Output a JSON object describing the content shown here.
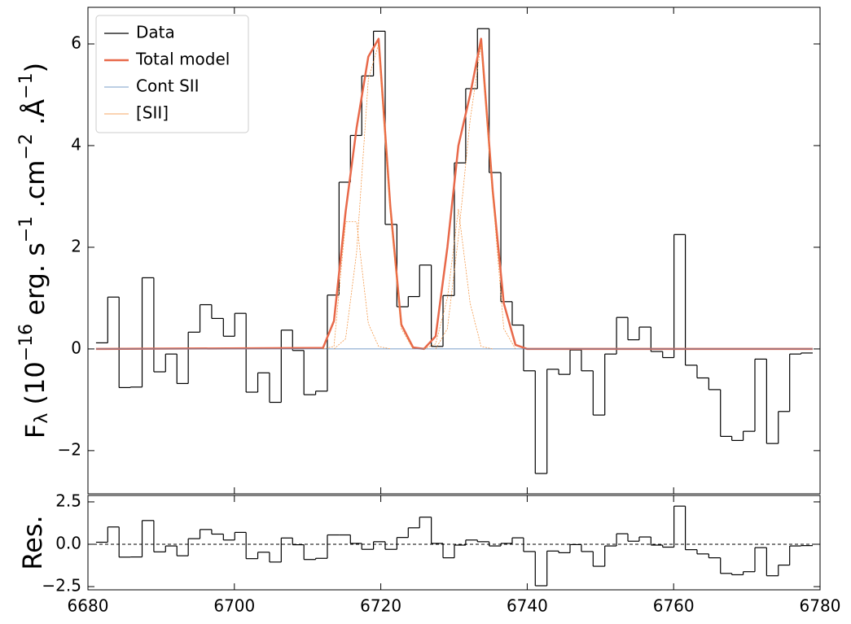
{
  "chart_data": [
    {
      "type": "line",
      "ylabel_parts": [
        {
          "text": "F"
        },
        {
          "text": "λ",
          "shift": "sub"
        },
        {
          "text": "  (10"
        },
        {
          "text": "−16",
          "shift": "sup"
        },
        {
          "text": " erg. s"
        },
        {
          "text": "−1",
          "shift": "sup"
        },
        {
          "text": " .cm"
        },
        {
          "text": "−2",
          "shift": "sup"
        },
        {
          "text": " .Å"
        },
        {
          "text": "−1",
          "shift": "sup"
        },
        {
          "text": ")"
        }
      ],
      "xlim": [
        6680,
        6780
      ],
      "xticks": [
        6680,
        6700,
        6720,
        6740,
        6760,
        6780
      ],
      "show_xtick_labels": false,
      "ylim": [
        -2.85,
        6.72
      ],
      "yticks": [
        {
          "value": -2,
          "label": "−2"
        },
        0,
        2,
        4,
        6
      ],
      "legend": "upper left",
      "series": [
        {
          "name": "Data",
          "color": "#000000",
          "linewidth": 1.2,
          "drawstyle": "steps-mid",
          "x": [
            6681.9,
            6683.5,
            6685.0,
            6686.6,
            6688.2,
            6689.8,
            6691.4,
            6692.9,
            6694.5,
            6696.1,
            6697.7,
            6699.3,
            6700.8,
            6702.4,
            6704.0,
            6705.6,
            6707.2,
            6708.7,
            6710.3,
            6711.9,
            6713.5,
            6715.1,
            6716.6,
            6718.2,
            6719.8,
            6721.4,
            6723.0,
            6724.5,
            6726.1,
            6727.7,
            6729.3,
            6730.8,
            6732.4,
            6734.0,
            6735.6,
            6737.2,
            6738.7,
            6740.3,
            6741.9,
            6743.5,
            6745.1,
            6746.6,
            6748.2,
            6749.8,
            6751.4,
            6753.0,
            6754.5,
            6756.1,
            6757.7,
            6759.3,
            6760.8,
            6762.4,
            6764.0,
            6765.6,
            6767.2,
            6768.7,
            6770.3,
            6771.9,
            6773.5,
            6775.1,
            6776.6,
            6778.2
          ],
          "values": [
            0.12,
            1.02,
            -0.76,
            -0.75,
            1.4,
            -0.45,
            -0.1,
            -0.68,
            0.33,
            0.87,
            0.6,
            0.25,
            0.7,
            -0.85,
            -0.47,
            -1.05,
            0.37,
            -0.03,
            -0.9,
            -0.83,
            1.06,
            3.28,
            4.2,
            5.37,
            6.25,
            2.45,
            0.83,
            1.03,
            1.65,
            0.05,
            1.05,
            3.66,
            5.12,
            6.3,
            3.47,
            0.93,
            0.47,
            -0.43,
            -2.45,
            -0.4,
            -0.5,
            -0.02,
            -0.43,
            -1.3,
            -0.1,
            0.62,
            0.18,
            0.43,
            -0.05,
            -0.17,
            2.25,
            -0.32,
            -0.57,
            -0.8,
            -1.72,
            -1.8,
            -1.62,
            -0.2,
            -1.86,
            -1.23,
            -0.1,
            -0.08
          ]
        },
        {
          "name": "Total model",
          "color": "#e8694a",
          "linewidth": 2.5,
          "x": [
            6681.1,
            6712.1,
            6713.6,
            6715.2,
            6716.7,
            6718.3,
            6719.7,
            6721.3,
            6722.8,
            6724.4,
            6725.9,
            6727.5,
            6729.1,
            6730.6,
            6732.2,
            6733.7,
            6735.3,
            6736.8,
            6738.4,
            6740.0,
            6779.0
          ],
          "values": [
            0,
            0.02,
            0.55,
            2.7,
            4.35,
            5.75,
            6.1,
            2.8,
            0.48,
            0.03,
            0,
            0.25,
            2.0,
            4.0,
            5.0,
            6.1,
            3.1,
            0.9,
            0.08,
            0,
            0
          ]
        },
        {
          "name": "Cont SII",
          "color": "#4c7fb8",
          "linewidth": 0.8,
          "x": [
            6681.1,
            6779.0
          ],
          "values": [
            0,
            0
          ]
        },
        {
          "name": "[SII]",
          "color": "#f28a30",
          "linewidth": 0.7,
          "linestyle": "dotted",
          "x": [
            6712.1,
            6713.6,
            6715.2,
            6716.7,
            6718.3,
            6719.7,
            6721.3,
            null,
            6713.6,
            6715.2,
            6716.7,
            6718.3,
            6719.7,
            6721.3,
            6722.8,
            6724.4,
            null,
            6725.9,
            6727.5,
            6729.1,
            6730.6,
            6732.2,
            6733.7,
            6735.3,
            null,
            6727.5,
            6729.1,
            6730.6,
            6732.2,
            6733.7,
            6735.3,
            6736.8,
            6738.4
          ],
          "values": [
            0,
            0.05,
            2.5,
            2.5,
            0.5,
            0.05,
            0,
            null,
            0,
            0.2,
            1.9,
            5.3,
            6.0,
            2.7,
            0.4,
            0,
            null,
            0,
            0.1,
            1.0,
            2.75,
            0.9,
            0.05,
            0,
            null,
            0,
            0.4,
            2.2,
            4.5,
            6.0,
            3.0,
            0.4,
            0
          ]
        }
      ]
    },
    {
      "type": "line",
      "ylabel_parts": [
        {
          "text": "Res."
        }
      ],
      "xlim": [
        6680,
        6780
      ],
      "xticks": [
        6680,
        6700,
        6720,
        6740,
        6760,
        6780
      ],
      "show_xtick_labels": true,
      "ylim": [
        -2.69,
        2.88
      ],
      "yticks": [
        {
          "value": -2.5,
          "label": "−2.5"
        },
        {
          "value": 0,
          "label": "0.0"
        },
        2.5
      ],
      "reference_line": 0,
      "series": [
        {
          "color": "#000000",
          "linewidth": 1.2,
          "drawstyle": "steps-mid",
          "x": [
            6681.9,
            6683.5,
            6685.0,
            6686.6,
            6688.2,
            6689.8,
            6691.4,
            6692.9,
            6694.5,
            6696.1,
            6697.7,
            6699.3,
            6700.8,
            6702.4,
            6704.0,
            6705.6,
            6707.2,
            6708.7,
            6710.3,
            6711.9,
            6713.5,
            6715.1,
            6716.6,
            6718.2,
            6719.8,
            6721.4,
            6723.0,
            6724.5,
            6726.1,
            6727.7,
            6729.3,
            6730.8,
            6732.4,
            6734.0,
            6735.6,
            6737.2,
            6738.7,
            6740.3,
            6741.9,
            6743.5,
            6745.1,
            6746.6,
            6748.2,
            6749.8,
            6751.4,
            6753.0,
            6754.5,
            6756.1,
            6757.7,
            6759.3,
            6760.8,
            6762.4,
            6764.0,
            6765.6,
            6767.2,
            6768.7,
            6770.3,
            6771.9,
            6773.5,
            6775.1,
            6776.6,
            6778.2
          ],
          "values": [
            0.12,
            1.02,
            -0.76,
            -0.75,
            1.4,
            -0.45,
            -0.1,
            -0.68,
            0.33,
            0.87,
            0.6,
            0.25,
            0.7,
            -0.85,
            -0.47,
            -1.05,
            0.37,
            -0.03,
            -0.9,
            -0.83,
            0.55,
            0.55,
            0.05,
            -0.3,
            0.15,
            -0.3,
            0.4,
            0.97,
            1.6,
            0.05,
            -0.8,
            -0.05,
            0.25,
            0.15,
            -0.1,
            0.05,
            0.38,
            -0.43,
            -2.45,
            -0.4,
            -0.5,
            -0.02,
            -0.43,
            -1.3,
            -0.1,
            0.62,
            0.18,
            0.43,
            -0.05,
            -0.17,
            2.25,
            -0.32,
            -0.57,
            -0.8,
            -1.72,
            -1.8,
            -1.62,
            -0.2,
            -1.86,
            -1.23,
            -0.1,
            -0.08
          ]
        }
      ]
    }
  ]
}
